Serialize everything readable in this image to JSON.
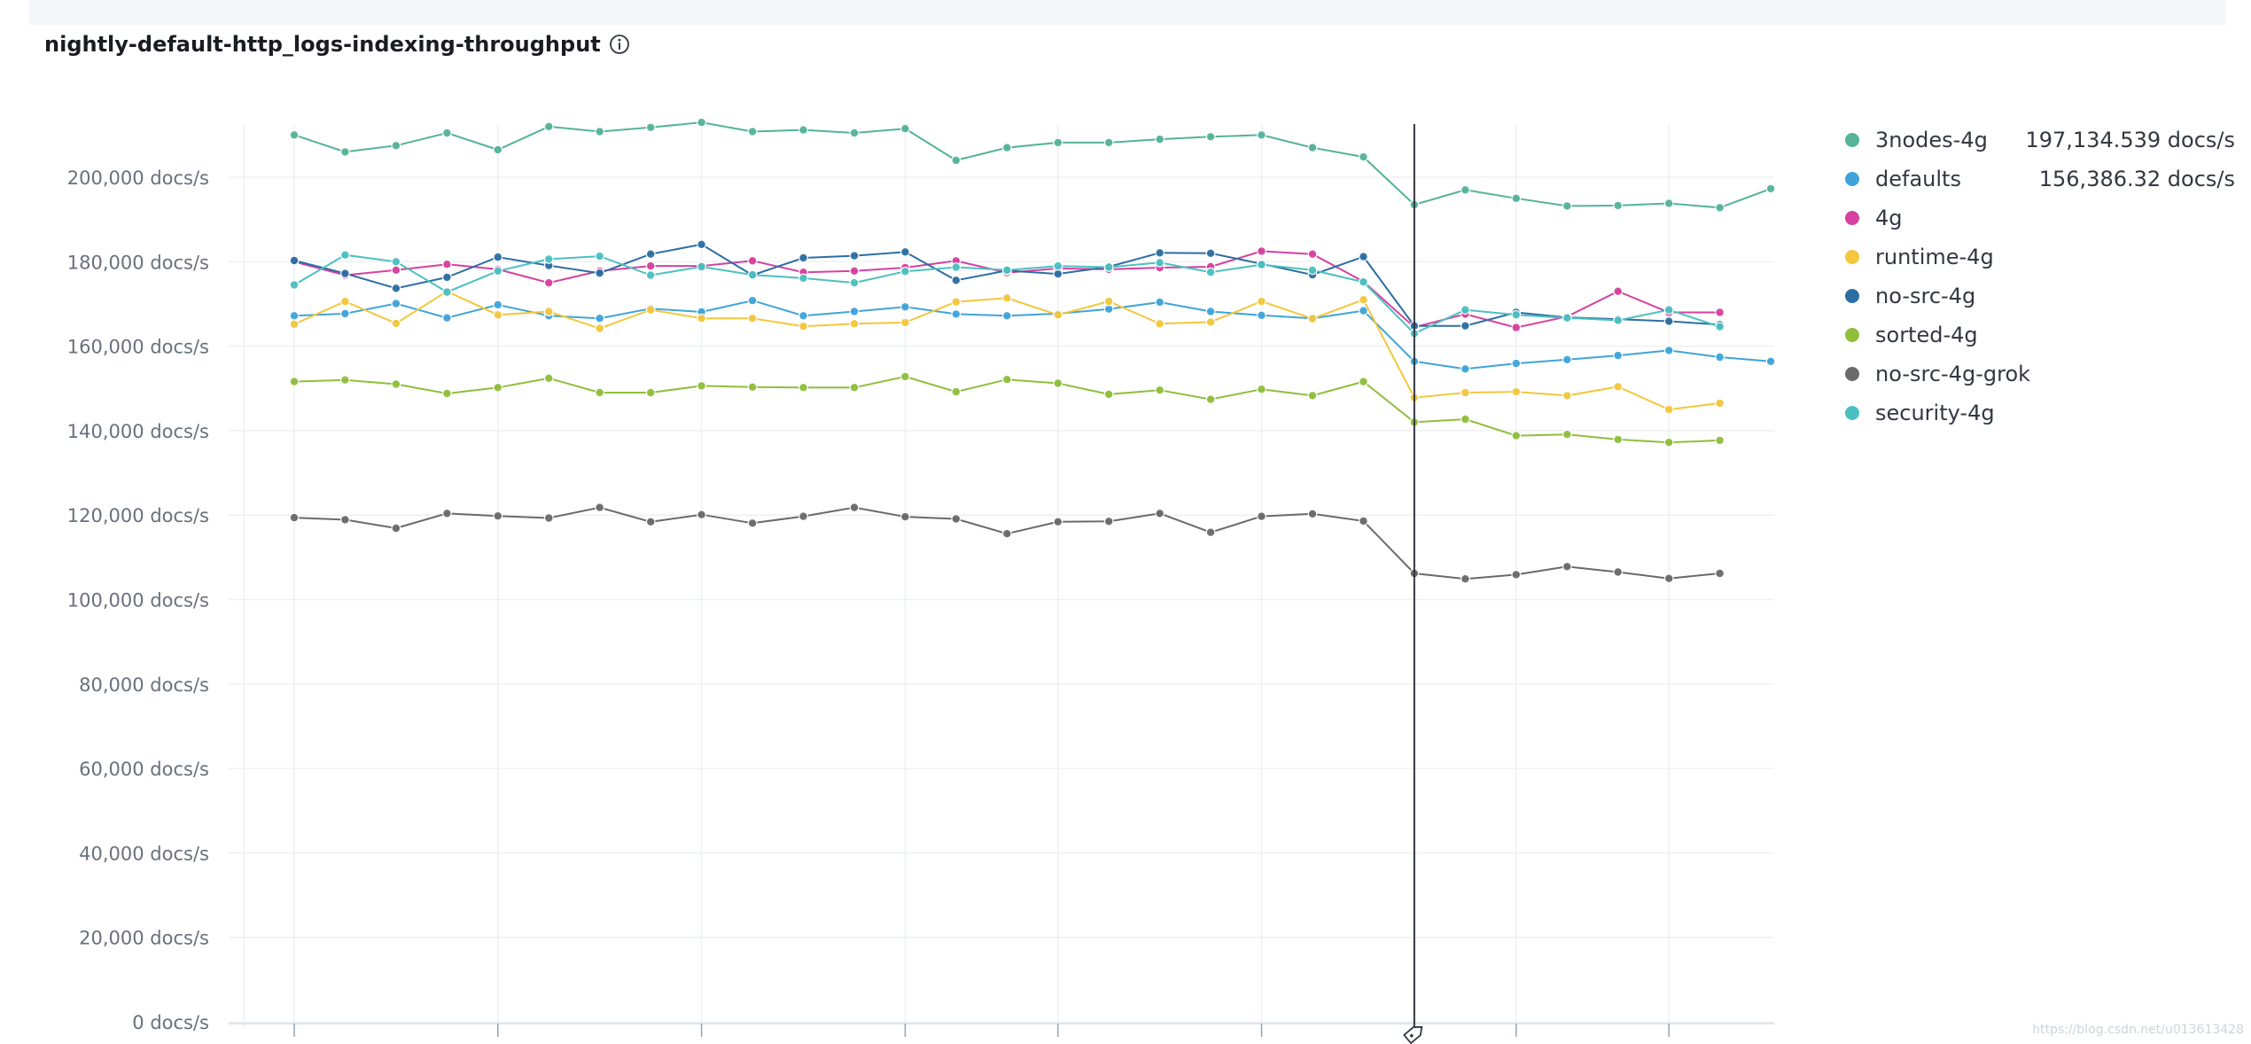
{
  "panel": {
    "title": "nightly-default-http_logs-indexing-throughput"
  },
  "watermark": "https://blog.csdn.net/u013613428",
  "chart_data": {
    "type": "line",
    "ylim": [
      0,
      210000
    ],
    "y_ticks": [
      {
        "value": 0,
        "label": "0 docs/s"
      },
      {
        "value": 20000,
        "label": "20,000 docs/s"
      },
      {
        "value": 40000,
        "label": "40,000 docs/s"
      },
      {
        "value": 60000,
        "label": "60,000 docs/s"
      },
      {
        "value": 80000,
        "label": "80,000 docs/s"
      },
      {
        "value": 100000,
        "label": "100,000 docs/s"
      },
      {
        "value": 120000,
        "label": "120,000 docs/s"
      },
      {
        "value": 140000,
        "label": "140,000 docs/s"
      },
      {
        "value": 160000,
        "label": "160,000 docs/s"
      },
      {
        "value": 180000,
        "label": "180,000 docs/s"
      },
      {
        "value": 200000,
        "label": "200,000 docs/s"
      }
    ],
    "x_count": 30,
    "cursor_index": 22,
    "legend_position": "right",
    "series": [
      {
        "name": "3nodes-4g",
        "color": "#54b399",
        "legend_value": "197,134.539 docs/s",
        "values": [
          210000,
          206000,
          207500,
          210500,
          206500,
          212000,
          210800,
          211800,
          213000,
          210800,
          211200,
          210500,
          211500,
          204000,
          207000,
          208200,
          208200,
          209000,
          209600,
          210000,
          207000,
          204800,
          193500,
          197000,
          195000,
          193200,
          193300,
          193800,
          192800,
          197300
        ]
      },
      {
        "name": "defaults",
        "color": "#3fa4d9",
        "legend_value": "156,386.32 docs/s",
        "values": [
          167200,
          167700,
          170100,
          166700,
          169800,
          167200,
          166600,
          168900,
          168100,
          170800,
          167200,
          168200,
          169300,
          167600,
          167200,
          167700,
          168800,
          170400,
          168200,
          167300,
          166600,
          168400,
          156400,
          154600,
          155900,
          156800,
          157800,
          159000,
          157400,
          156400
        ]
      },
      {
        "name": "4g",
        "color": "#d6409f",
        "legend_value": "",
        "values": [
          180000,
          176800,
          178000,
          179400,
          178200,
          175000,
          177800,
          179000,
          179000,
          180200,
          177500,
          177800,
          178600,
          180200,
          177400,
          178400,
          178200,
          178600,
          178800,
          182500,
          181800,
          175300,
          164500,
          167600,
          164400,
          167000,
          173000,
          168000,
          168000,
          null
        ]
      },
      {
        "name": "runtime-4g",
        "color": "#f2c73c",
        "legend_value": "",
        "values": [
          165200,
          170600,
          165400,
          173000,
          167400,
          168200,
          164200,
          168600,
          166600,
          166600,
          164700,
          165300,
          165600,
          170500,
          171400,
          167400,
          170600,
          165300,
          165700,
          170600,
          166500,
          171000,
          147800,
          149000,
          149200,
          148300,
          150400,
          145000,
          146500,
          null
        ]
      },
      {
        "name": "no-src-4g",
        "color": "#2c6ea3",
        "legend_value": "",
        "values": [
          180300,
          177200,
          173700,
          176300,
          181100,
          179100,
          177300,
          181800,
          184100,
          176800,
          180900,
          181400,
          182300,
          175600,
          177900,
          177100,
          178800,
          182100,
          182000,
          179500,
          176900,
          181200,
          164800,
          164800,
          168000,
          166800,
          166400,
          165900,
          165100,
          null
        ]
      },
      {
        "name": "sorted-4g",
        "color": "#8fbe3a",
        "legend_value": "",
        "values": [
          151600,
          152000,
          151000,
          148800,
          150200,
          152400,
          149000,
          149000,
          150600,
          150300,
          150200,
          150200,
          152800,
          149200,
          152100,
          151200,
          148600,
          149600,
          147400,
          149800,
          148300,
          151600,
          142000,
          142700,
          138800,
          139100,
          137900,
          137200,
          137700,
          null
        ]
      },
      {
        "name": "no-src-4g-grok",
        "color": "#6a6a6a",
        "legend_value": "",
        "values": [
          119400,
          118900,
          116900,
          120400,
          119800,
          119300,
          121800,
          118400,
          120100,
          118100,
          119700,
          121800,
          119600,
          119100,
          115600,
          118400,
          118500,
          120400,
          115900,
          119700,
          120300,
          118600,
          106200,
          104900,
          105900,
          107800,
          106500,
          105000,
          106200,
          null
        ]
      },
      {
        "name": "security-4g",
        "color": "#4cc0c0",
        "legend_value": "",
        "values": [
          174500,
          181600,
          180000,
          172800,
          177800,
          180600,
          181300,
          176800,
          178800,
          176900,
          176100,
          175000,
          177700,
          178700,
          178000,
          179000,
          178700,
          179800,
          177500,
          179300,
          178000,
          175200,
          163000,
          168600,
          167400,
          166700,
          166100,
          168600,
          164600,
          null
        ]
      }
    ]
  }
}
